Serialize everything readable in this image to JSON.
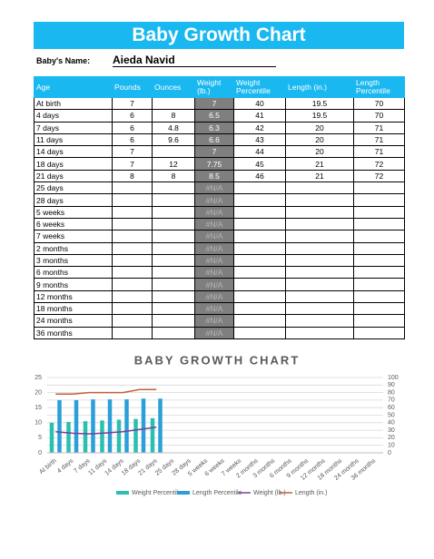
{
  "header": {
    "title": "Baby Growth Chart",
    "name_label": "Baby's Name:",
    "name": "Aieda Navid"
  },
  "table": {
    "headers": [
      "Age",
      "Pounds",
      "Ounces",
      "Weight (lb.)",
      "Weight Percentile",
      "Length (in.)",
      "Length Percentile"
    ],
    "rows": [
      [
        "At birth",
        7,
        null,
        7,
        40,
        19.5,
        70
      ],
      [
        "4 days",
        6,
        8,
        6.5,
        41,
        19.5,
        70
      ],
      [
        "7 days",
        6,
        4.8,
        6.3,
        42,
        20,
        71
      ],
      [
        "11 days",
        6,
        9.6,
        6.6,
        43,
        20,
        71
      ],
      [
        "14 days",
        7,
        null,
        7,
        44,
        20,
        71
      ],
      [
        "18 days",
        7,
        12,
        7.75,
        45,
        21,
        72
      ],
      [
        "21 days",
        8,
        8,
        8.5,
        46,
        21,
        72
      ],
      [
        "25 days",
        null,
        null,
        "#N/A",
        null,
        null,
        null
      ],
      [
        "28 days",
        null,
        null,
        "#N/A",
        null,
        null,
        null
      ],
      [
        "5 weeks",
        null,
        null,
        "#N/A",
        null,
        null,
        null
      ],
      [
        "6 weeks",
        null,
        null,
        "#N/A",
        null,
        null,
        null
      ],
      [
        "7 weeks",
        null,
        null,
        "#N/A",
        null,
        null,
        null
      ],
      [
        "2 months",
        null,
        null,
        "#N/A",
        null,
        null,
        null
      ],
      [
        "3 months",
        null,
        null,
        "#N/A",
        null,
        null,
        null
      ],
      [
        "6 months",
        null,
        null,
        "#N/A",
        null,
        null,
        null
      ],
      [
        "9 months",
        null,
        null,
        "#N/A",
        null,
        null,
        null
      ],
      [
        "12 months",
        null,
        null,
        "#N/A",
        null,
        null,
        null
      ],
      [
        "18 months",
        null,
        null,
        "#N/A",
        null,
        null,
        null
      ],
      [
        "24 months",
        null,
        null,
        "#N/A",
        null,
        null,
        null
      ],
      [
        "36 months",
        null,
        null,
        "#N/A",
        null,
        null,
        null
      ]
    ]
  },
  "chart_data": {
    "type": "bar",
    "title": "BABY GROWTH CHART",
    "categories": [
      "At birth",
      "4 days",
      "7 days",
      "11 days",
      "14 days",
      "18 days",
      "21 days",
      "25 days",
      "28 days",
      "5 weeks",
      "6 weeks",
      "7 weeks",
      "2 months",
      "3 months",
      "6 months",
      "9 months",
      "12 months",
      "18 months",
      "24 months",
      "36 months"
    ],
    "series": [
      {
        "name": "Weight Percentile",
        "kind": "bar",
        "axis": "y2",
        "color": "#2bbfb0",
        "values": [
          40,
          41,
          42,
          43,
          44,
          45,
          46,
          null,
          null,
          null,
          null,
          null,
          null,
          null,
          null,
          null,
          null,
          null,
          null,
          null
        ]
      },
      {
        "name": "Length Percentile",
        "kind": "bar",
        "axis": "y2",
        "color": "#2a9fd8",
        "values": [
          70,
          70,
          71,
          71,
          71,
          72,
          72,
          null,
          null,
          null,
          null,
          null,
          null,
          null,
          null,
          null,
          null,
          null,
          null,
          null
        ]
      },
      {
        "name": "Weight (lb.)",
        "kind": "line",
        "color": "#7b3f98",
        "values": [
          7,
          6.5,
          6.3,
          6.6,
          7,
          7.75,
          8.5,
          null,
          null,
          null,
          null,
          null,
          null,
          null,
          null,
          null,
          null,
          null,
          null,
          null
        ]
      },
      {
        "name": "Length (in.)",
        "kind": "line",
        "color": "#c0603a",
        "values": [
          19.5,
          19.5,
          20,
          20,
          20,
          21,
          21,
          null,
          null,
          null,
          null,
          null,
          null,
          null,
          null,
          null,
          null,
          null,
          null,
          null
        ]
      }
    ],
    "ylim": [
      0,
      25
    ],
    "yticks": [
      0,
      5,
      10,
      15,
      20,
      25
    ],
    "y2lim": [
      0,
      100
    ],
    "y2ticks": [
      0,
      10,
      20,
      30,
      40,
      50,
      60,
      70,
      80,
      90,
      100
    ],
    "grid": true,
    "legend": "bottom"
  }
}
